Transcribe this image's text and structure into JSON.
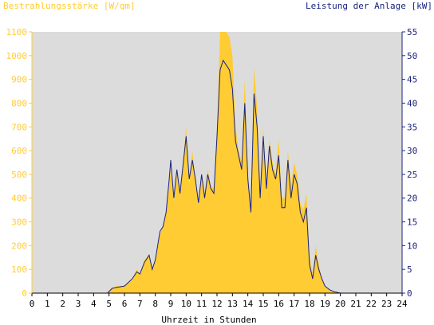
{
  "chart_data": {
    "type": "area",
    "left_axis_label": "Bestrahlungsstärke [W/qm]",
    "right_axis_label": "Leistung der Anlage [kW]",
    "xlabel": "Uhrzeit in Stunden",
    "xlim": [
      0,
      24
    ],
    "ylim_left": [
      0,
      1100
    ],
    "ylim_right": [
      0,
      55
    ],
    "x_ticks": [
      "0",
      "1",
      "2",
      "3",
      "4",
      "5",
      "6",
      "7",
      "8",
      "9",
      "10",
      "11",
      "12",
      "13",
      "14",
      "15",
      "16",
      "17",
      "18",
      "19",
      "20",
      "21",
      "22",
      "23",
      "24"
    ],
    "y_left_ticks": [
      "0",
      "100",
      "200",
      "300",
      "400",
      "500",
      "600",
      "700",
      "800",
      "900",
      "1000",
      "1100"
    ],
    "y_right_ticks": [
      "0",
      "5",
      "10",
      "15",
      "20",
      "25",
      "30",
      "35",
      "40",
      "45",
      "50",
      "55"
    ],
    "colors": {
      "irradiance": "#ffcc33",
      "power": "#1a237e",
      "plot_bg": "#dcdcdc",
      "left_axis_text": "#ffcc33",
      "right_axis_text": "#1a237e"
    },
    "series": [
      {
        "name": "Bestrahlungsstärke [W/qm]",
        "axis": "left",
        "x": [
          0,
          4.9,
          5.2,
          5.5,
          6,
          6.5,
          6.8,
          7,
          7.3,
          7.6,
          7.8,
          8,
          8.3,
          8.5,
          8.7,
          8.9,
          9,
          9.2,
          9.4,
          9.6,
          9.8,
          10,
          10.2,
          10.4,
          10.6,
          10.8,
          11,
          11.2,
          11.4,
          11.6,
          11.8,
          12,
          12.2,
          12.4,
          12.6,
          12.8,
          13,
          13.2,
          13.4,
          13.6,
          13.8,
          14,
          14.2,
          14.4,
          14.6,
          14.8,
          15,
          15.2,
          15.4,
          15.6,
          15.8,
          16,
          16.2,
          16.4,
          16.6,
          16.8,
          17,
          17.2,
          17.4,
          17.6,
          17.8,
          18,
          18.2,
          18.4,
          18.6,
          18.8,
          19,
          19.3,
          19.6,
          20,
          20.3,
          24
        ],
        "values": [
          0,
          0,
          20,
          30,
          30,
          60,
          100,
          80,
          140,
          160,
          100,
          150,
          250,
          280,
          350,
          450,
          520,
          380,
          500,
          420,
          560,
          700,
          450,
          600,
          480,
          380,
          500,
          420,
          520,
          450,
          440,
          700,
          1100,
          1100,
          1100,
          1080,
          1000,
          700,
          600,
          550,
          900,
          500,
          350,
          950,
          780,
          400,
          700,
          450,
          650,
          550,
          500,
          650,
          400,
          400,
          600,
          450,
          550,
          500,
          380,
          350,
          420,
          150,
          80,
          200,
          120,
          60,
          30,
          10,
          5,
          0,
          0,
          0
        ]
      },
      {
        "name": "Leistung der Anlage [kW]",
        "axis": "right",
        "x": [
          0,
          4.9,
          5.2,
          5.5,
          6,
          6.5,
          6.8,
          7,
          7.3,
          7.6,
          7.8,
          8,
          8.3,
          8.5,
          8.7,
          8.9,
          9,
          9.2,
          9.4,
          9.6,
          9.8,
          10,
          10.2,
          10.4,
          10.6,
          10.8,
          11,
          11.2,
          11.4,
          11.6,
          11.8,
          12,
          12.2,
          12.4,
          12.6,
          12.8,
          13,
          13.2,
          13.4,
          13.6,
          13.8,
          14,
          14.2,
          14.4,
          14.6,
          14.8,
          15,
          15.2,
          15.4,
          15.6,
          15.8,
          16,
          16.2,
          16.4,
          16.6,
          16.8,
          17,
          17.2,
          17.4,
          17.6,
          17.8,
          18,
          18.2,
          18.4,
          18.6,
          18.8,
          19,
          19.3,
          19.6,
          20,
          20.3,
          24
        ],
        "values": [
          0,
          0,
          1,
          1.2,
          1.5,
          3,
          4.5,
          4,
          6.5,
          8,
          5,
          7,
          13,
          14,
          17,
          24,
          28,
          20,
          26,
          21,
          27,
          33,
          24,
          28,
          24,
          19,
          25,
          20,
          25,
          22,
          21,
          33,
          47,
          49,
          48,
          47,
          43,
          32,
          29,
          26,
          40,
          24,
          17,
          42,
          35,
          20,
          33,
          22,
          31,
          26,
          24,
          29,
          18,
          18,
          28,
          20,
          25,
          23,
          17,
          15,
          18,
          6,
          3,
          8,
          5,
          3,
          1.5,
          0.7,
          0.3,
          0,
          0,
          0
        ]
      }
    ]
  }
}
